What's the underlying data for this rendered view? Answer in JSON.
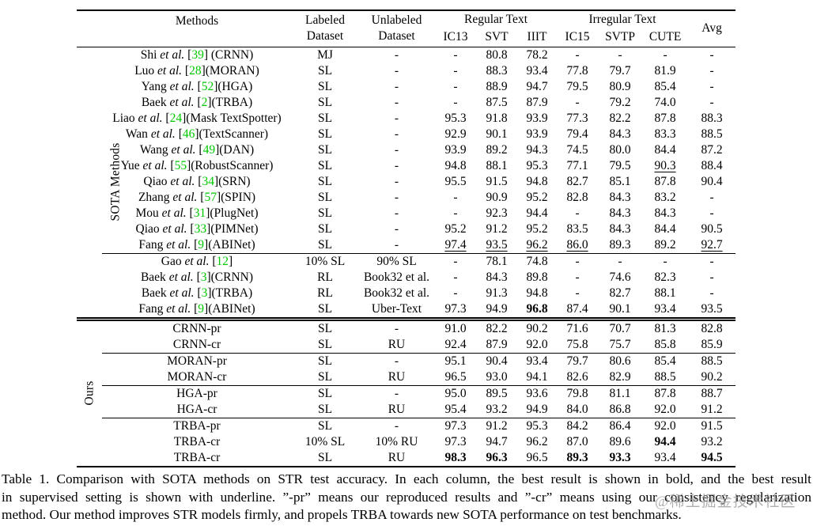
{
  "table": {
    "header": {
      "methods": "Methods",
      "labeled_line1": "Labeled",
      "labeled_line2": "Dataset",
      "unlabeled_line1": "Unlabeled",
      "unlabeled_line2": "Dataset",
      "regular_group": "Regular Text",
      "irregular_group": "Irregular Text",
      "sub_cols": [
        "IC13",
        "SVT",
        "IIIT",
        "IC15",
        "SVTP",
        "CUTE"
      ],
      "avg": "Avg"
    },
    "row_groups": [
      {
        "label": "SOTA Methods",
        "rule_top": "heavy",
        "subsections": [
          {
            "rows": [
              {
                "method": {
                  "authors": "Shi",
                  "cite": "39",
                  "rest": " (CRNN)"
                },
                "cells": [
                  "MJ",
                  "-",
                  "-",
                  "80.8",
                  "78.2",
                  "-",
                  "-",
                  "-",
                  "-"
                ]
              },
              {
                "method": {
                  "authors": "Luo",
                  "cite": "28",
                  "rest": "(MORAN)"
                },
                "cells": [
                  "SL",
                  "-",
                  "-",
                  "88.3",
                  "93.4",
                  "77.8",
                  "79.7",
                  "81.9",
                  "-"
                ]
              },
              {
                "method": {
                  "authors": "Yang",
                  "cite": "52",
                  "rest": "(HGA)"
                },
                "cells": [
                  "SL",
                  "-",
                  "-",
                  "88.9",
                  "94.7",
                  "79.5",
                  "80.9",
                  "85.4",
                  "-"
                ]
              },
              {
                "method": {
                  "authors": "Baek",
                  "cite": "2",
                  "rest": "(TRBA)"
                },
                "cells": [
                  "SL",
                  "-",
                  "-",
                  "87.5",
                  "87.9",
                  "-",
                  "79.2",
                  "74.0",
                  "-"
                ]
              },
              {
                "method": {
                  "authors": "Liao",
                  "cite": "24",
                  "rest": "(Mask TextSpotter)"
                },
                "cells": [
                  "SL",
                  "-",
                  "95.3",
                  "91.8",
                  "93.9",
                  "77.3",
                  "82.2",
                  "87.8",
                  "88.3"
                ]
              },
              {
                "method": {
                  "authors": "Wan",
                  "cite": "46",
                  "rest": "(TextScanner)"
                },
                "cells": [
                  "SL",
                  "-",
                  "92.9",
                  "90.1",
                  "93.9",
                  "79.4",
                  "84.3",
                  "83.3",
                  "88.5"
                ]
              },
              {
                "method": {
                  "authors": "Wang",
                  "cite": "49",
                  "rest": "(DAN)"
                },
                "cells": [
                  "SL",
                  "-",
                  "93.9",
                  "89.2",
                  "94.3",
                  "74.5",
                  "80.0",
                  "84.4",
                  "87.2"
                ]
              },
              {
                "method": {
                  "authors": "Yue",
                  "cite": "55",
                  "rest": "(RobustScanner)"
                },
                "cells": [
                  "SL",
                  "-",
                  "94.8",
                  "88.1",
                  "95.3",
                  "77.1",
                  "79.5",
                  {
                    "t": "90.3",
                    "s": "u"
                  },
                  "88.4"
                ]
              },
              {
                "method": {
                  "authors": "Qiao",
                  "cite": "34",
                  "rest": "(SRN)"
                },
                "cells": [
                  "SL",
                  "-",
                  "95.5",
                  "91.5",
                  "94.8",
                  "82.7",
                  "85.1",
                  "87.8",
                  "90.4"
                ]
              },
              {
                "method": {
                  "authors": "Zhang",
                  "cite": "57",
                  "rest": "(SPIN)"
                },
                "cells": [
                  "SL",
                  "-",
                  "-",
                  "90.9",
                  "95.2",
                  "82.8",
                  "84.3",
                  "83.2",
                  "-"
                ]
              },
              {
                "method": {
                  "authors": "Mou",
                  "cite": "31",
                  "rest": "(PlugNet)"
                },
                "cells": [
                  "SL",
                  "-",
                  "-",
                  "92.3",
                  "94.4",
                  "-",
                  "84.3",
                  "84.3",
                  "-"
                ]
              },
              {
                "method": {
                  "authors": "Qiao",
                  "cite": "33",
                  "rest": "(PIMNet)"
                },
                "cells": [
                  "SL",
                  "-",
                  "95.2",
                  "91.2",
                  "95.2",
                  "83.5",
                  "84.3",
                  "84.4",
                  "90.5"
                ]
              },
              {
                "method": {
                  "authors": "Fang",
                  "cite": "9",
                  "rest": "(ABINet)"
                },
                "cells": [
                  "SL",
                  "-",
                  {
                    "t": "97.4",
                    "s": "u"
                  },
                  {
                    "t": "93.5",
                    "s": "u"
                  },
                  {
                    "t": "96.2",
                    "s": "u"
                  },
                  {
                    "t": "86.0",
                    "s": "u"
                  },
                  "89.3",
                  "89.2",
                  {
                    "t": "92.7",
                    "s": "u"
                  }
                ]
              }
            ]
          },
          {
            "rows": [
              {
                "method": {
                  "authors": "Gao",
                  "cite": "12",
                  "rest": ""
                },
                "cells": [
                  "10% SL",
                  "90% SL",
                  "-",
                  "78.1",
                  "74.8",
                  "-",
                  "-",
                  "-",
                  "-"
                ]
              },
              {
                "method": {
                  "authors": "Baek",
                  "cite": "3",
                  "rest": "(CRNN)"
                },
                "cells": [
                  "RL",
                  "Book32 et al.",
                  "-",
                  "84.3",
                  "89.8",
                  "-",
                  "74.6",
                  "82.3",
                  "-"
                ]
              },
              {
                "method": {
                  "authors": "Baek",
                  "cite": "3",
                  "rest": "(TRBA)"
                },
                "cells": [
                  "RL",
                  "Book32 et al.",
                  "-",
                  "91.3",
                  "94.8",
                  "-",
                  "82.7",
                  "88.1",
                  "-"
                ]
              },
              {
                "method": {
                  "authors": "Fang",
                  "cite": "9",
                  "rest": "(ABINet)"
                },
                "cells": [
                  "SL",
                  "Uber-Text",
                  "97.3",
                  "94.9",
                  {
                    "t": "96.8",
                    "s": "b"
                  },
                  "87.4",
                  "90.1",
                  "93.4",
                  "93.5"
                ]
              }
            ]
          }
        ]
      },
      {
        "label": "Ours",
        "rule_top": "double",
        "subsections": [
          {
            "rows": [
              {
                "method": {
                  "name": "CRNN-pr"
                },
                "cells": [
                  "SL",
                  "-",
                  "91.0",
                  "82.2",
                  "90.2",
                  "71.6",
                  "70.7",
                  "81.3",
                  "82.8"
                ]
              },
              {
                "method": {
                  "name": "CRNN-cr"
                },
                "cells": [
                  "SL",
                  "RU",
                  "92.4",
                  "87.9",
                  "92.0",
                  "75.8",
                  "75.7",
                  "85.8",
                  "85.9"
                ]
              }
            ]
          },
          {
            "rows": [
              {
                "method": {
                  "name": "MORAN-pr"
                },
                "cells": [
                  "SL",
                  "-",
                  "95.1",
                  "90.4",
                  "93.4",
                  "79.7",
                  "80.6",
                  "85.4",
                  "88.5"
                ]
              },
              {
                "method": {
                  "name": "MORAN-cr"
                },
                "cells": [
                  "SL",
                  "RU",
                  "96.5",
                  "93.0",
                  "94.1",
                  "82.6",
                  "82.9",
                  "88.5",
                  "90.2"
                ]
              }
            ]
          },
          {
            "rows": [
              {
                "method": {
                  "name": "HGA-pr"
                },
                "cells": [
                  "SL",
                  "-",
                  "95.0",
                  "89.5",
                  "93.6",
                  "79.8",
                  "81.1",
                  "87.8",
                  "88.7"
                ]
              },
              {
                "method": {
                  "name": "HGA-cr"
                },
                "cells": [
                  "SL",
                  "RU",
                  "95.4",
                  "93.2",
                  "94.9",
                  "84.0",
                  "86.8",
                  "92.0",
                  "91.2"
                ]
              }
            ]
          },
          {
            "rows": [
              {
                "method": {
                  "name": "TRBA-pr"
                },
                "cells": [
                  "SL",
                  "-",
                  "97.3",
                  "91.2",
                  "95.3",
                  "84.2",
                  "86.4",
                  "92.0",
                  "91.5"
                ]
              },
              {
                "method": {
                  "name": "TRBA-cr"
                },
                "cells": [
                  "10% SL",
                  "10% RU",
                  "97.3",
                  "94.7",
                  "96.2",
                  "87.0",
                  "89.6",
                  {
                    "t": "94.4",
                    "s": "b"
                  },
                  "93.2"
                ]
              },
              {
                "method": {
                  "name": "TRBA-cr"
                },
                "cells": [
                  "SL",
                  "RU",
                  {
                    "t": "98.3",
                    "s": "b"
                  },
                  {
                    "t": "96.3",
                    "s": "b"
                  },
                  "96.5",
                  {
                    "t": "89.3",
                    "s": "b"
                  },
                  {
                    "t": "93.3",
                    "s": "b"
                  },
                  "93.4",
                  {
                    "t": "94.5",
                    "s": "b"
                  }
                ]
              }
            ]
          }
        ]
      }
    ]
  },
  "caption": {
    "lines": [
      "Table 1.  Comparison with SOTA methods on STR test accuracy.  In each column, the best result is shown in bold, and the best result",
      "in supervised setting is shown with underline. ”-pr” means our reproduced results and ”-cr” means using our consistency regularization",
      "method. Our method improves STR models firmly, and propels TRBA towards new SOTA performance on test benchmarks."
    ]
  },
  "watermark": {
    "text": "@稀土掘金技术社区"
  },
  "colors": {
    "citation_green": "#00C800",
    "rule_black": "#000000",
    "watermark_gray": "#969696"
  }
}
